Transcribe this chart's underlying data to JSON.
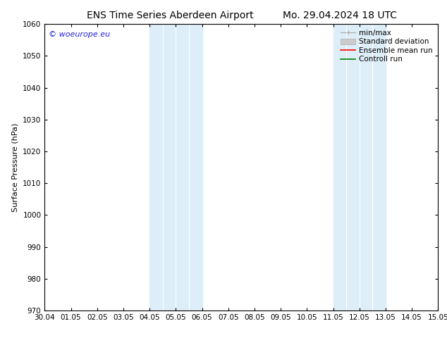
{
  "title_left": "ENS Time Series Aberdeen Airport",
  "title_right": "Mo. 29.04.2024 18 UTC",
  "ylabel": "Surface Pressure (hPa)",
  "xlim": [
    0,
    15
  ],
  "ylim": [
    970,
    1060
  ],
  "yticks": [
    970,
    980,
    990,
    1000,
    1010,
    1020,
    1030,
    1040,
    1050,
    1060
  ],
  "xtick_labels": [
    "30.04",
    "01.05",
    "02.05",
    "03.05",
    "04.05",
    "05.05",
    "06.05",
    "07.05",
    "08.05",
    "09.05",
    "10.05",
    "11.05",
    "12.05",
    "13.05",
    "14.05",
    "15.05"
  ],
  "xtick_positions": [
    0,
    1,
    2,
    3,
    4,
    5,
    6,
    7,
    8,
    9,
    10,
    11,
    12,
    13,
    14,
    15
  ],
  "shaded_blocks": [
    {
      "xmin": 4.0,
      "xmax": 4.5,
      "color": "#ddeef8"
    },
    {
      "xmin": 4.5,
      "xmax": 5.0,
      "color": "#ddeef8"
    },
    {
      "xmin": 5.0,
      "xmax": 5.5,
      "color": "#ddeef8"
    },
    {
      "xmin": 5.5,
      "xmax": 6.0,
      "color": "#ddeef8"
    },
    {
      "xmin": 11.0,
      "xmax": 11.5,
      "color": "#ddeef8"
    },
    {
      "xmin": 11.5,
      "xmax": 12.0,
      "color": "#ddeef8"
    },
    {
      "xmin": 12.0,
      "xmax": 12.5,
      "color": "#ddeef8"
    },
    {
      "xmin": 12.5,
      "xmax": 13.0,
      "color": "#ddeef8"
    }
  ],
  "divider_lines": [
    4.5,
    5.0,
    5.5,
    11.5,
    12.0,
    12.5
  ],
  "watermark": "© woeurope.eu",
  "watermark_color": "#2222cc",
  "background_color": "#ffffff",
  "plot_bg_color": "#ffffff",
  "title_fontsize": 10,
  "axis_label_fontsize": 8,
  "tick_fontsize": 7.5,
  "legend_fontsize": 7.5
}
